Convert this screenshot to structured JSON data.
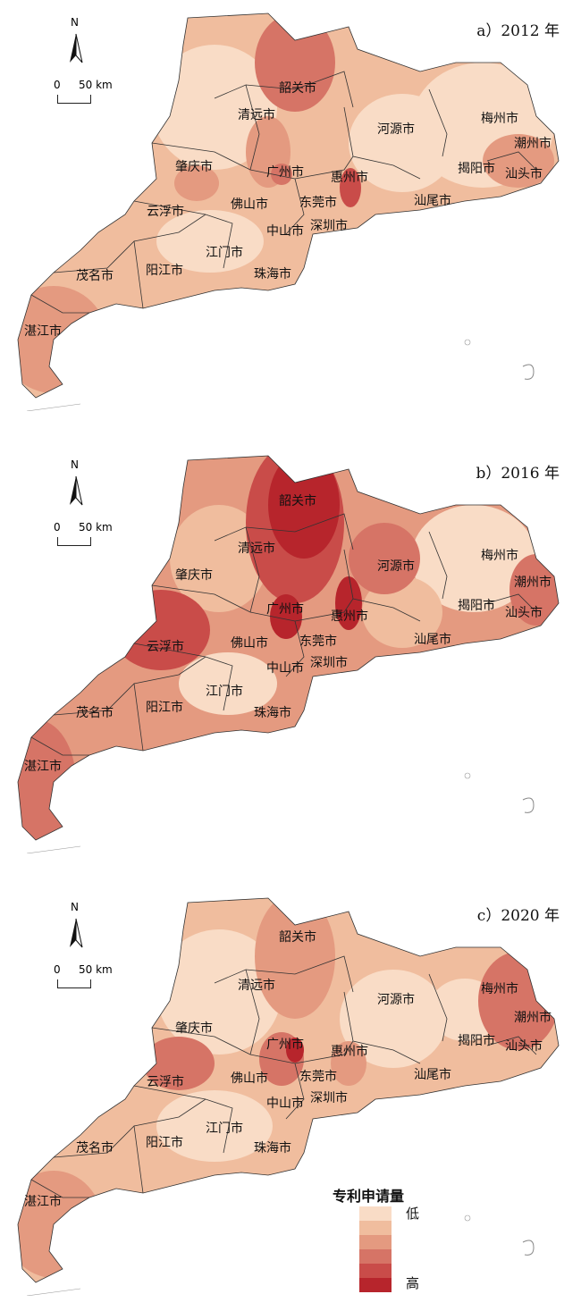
{
  "scale_bar": {
    "zero": "0",
    "fifty": "50 km"
  },
  "north_letter": "N",
  "panels": [
    {
      "label": "a）2012 年"
    },
    {
      "label": "b）2016 年"
    },
    {
      "label": "c）2020 年"
    }
  ],
  "cities": [
    "韶关市",
    "清远市",
    "河源市",
    "梅州市",
    "潮州市",
    "揭阳市",
    "汕头市",
    "肇庆市",
    "广州市",
    "惠州市",
    "东莞市",
    "佛山市",
    "云浮市",
    "中山市",
    "深圳市",
    "汕尾市",
    "江门市",
    "阳江市",
    "茂名市",
    "珠海市",
    "湛江市"
  ],
  "legend": {
    "title": "专利申请量",
    "low": "低",
    "high": "高",
    "colors": [
      "#f9dcc6",
      "#f0bd9e",
      "#e49a80",
      "#d67466",
      "#c94c49",
      "#b7252c"
    ]
  }
}
